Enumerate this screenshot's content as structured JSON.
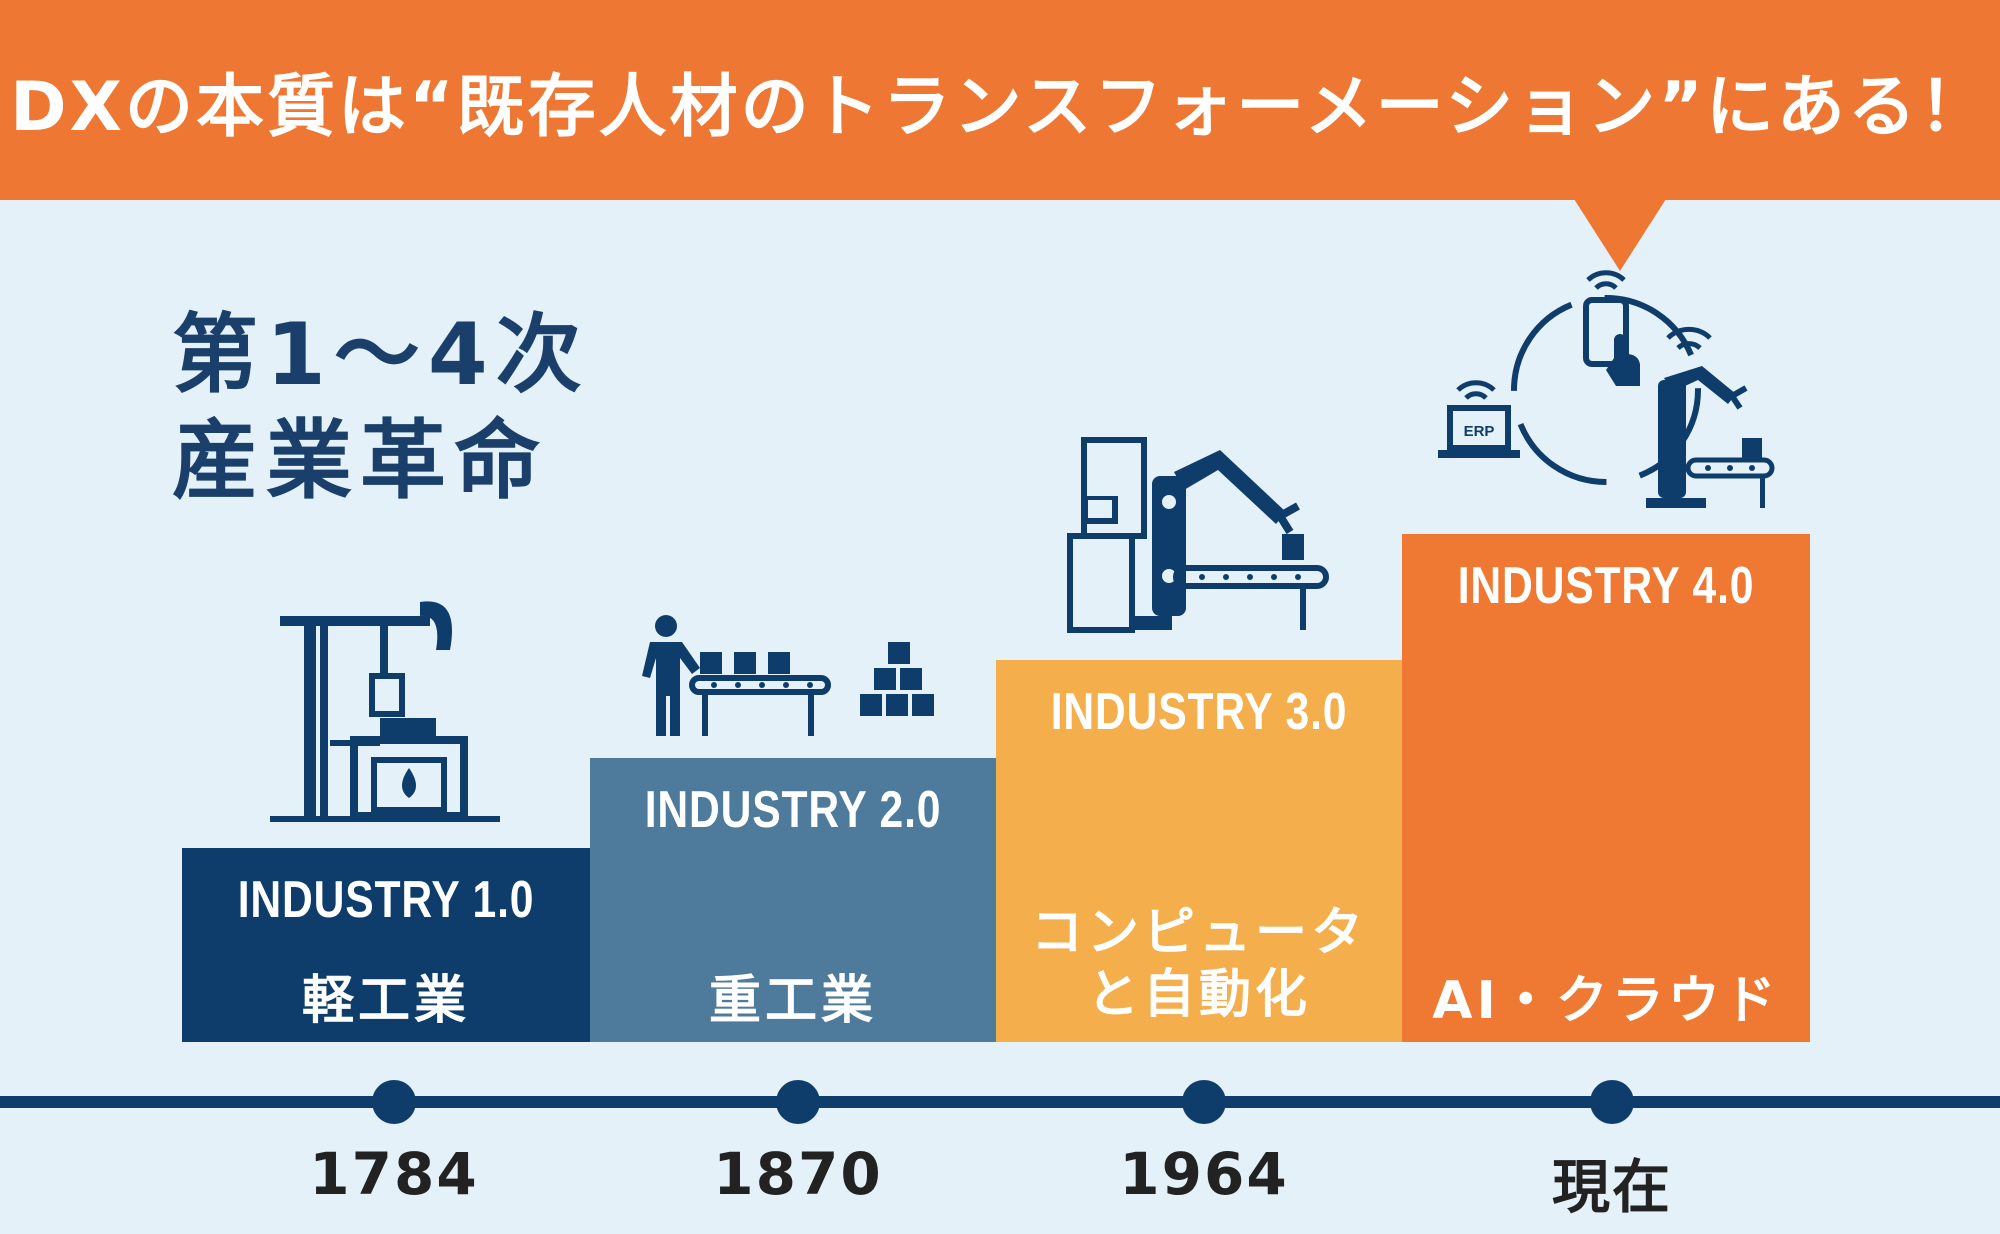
{
  "banner": {
    "title": "DXの本質は“既存人材のトランスフォーメーション”にある！"
  },
  "heading": {
    "line1": "第1～4次",
    "line2": "産業革命"
  },
  "stages": [
    {
      "industry": "INDUSTRY 1.0",
      "desc_line1": "",
      "desc_line2": "軽工業",
      "year": "1784",
      "color": "#0f3d6b",
      "icon": "oil-pump-furnace-icon"
    },
    {
      "industry": "INDUSTRY 2.0",
      "desc_line1": "",
      "desc_line2": "重工業",
      "year": "1870",
      "color": "#4e7a9c",
      "icon": "assembly-line-worker-icon"
    },
    {
      "industry": "INDUSTRY 3.0",
      "desc_line1": "コンピュータ",
      "desc_line2": "と自動化",
      "year": "1964",
      "color": "#f4ae4c",
      "icon": "robot-arm-computer-icon"
    },
    {
      "industry": "INDUSTRY 4.0",
      "desc_line1": "",
      "desc_line2": "AI・クラウド",
      "year": "現在",
      "color": "#ef7833",
      "icon": "iot-network-icon"
    }
  ],
  "icons": {
    "erp_label": "ERP"
  },
  "colors": {
    "banner": "#ee7833",
    "background": "#e4f1f8",
    "navy": "#0f3d6b"
  }
}
